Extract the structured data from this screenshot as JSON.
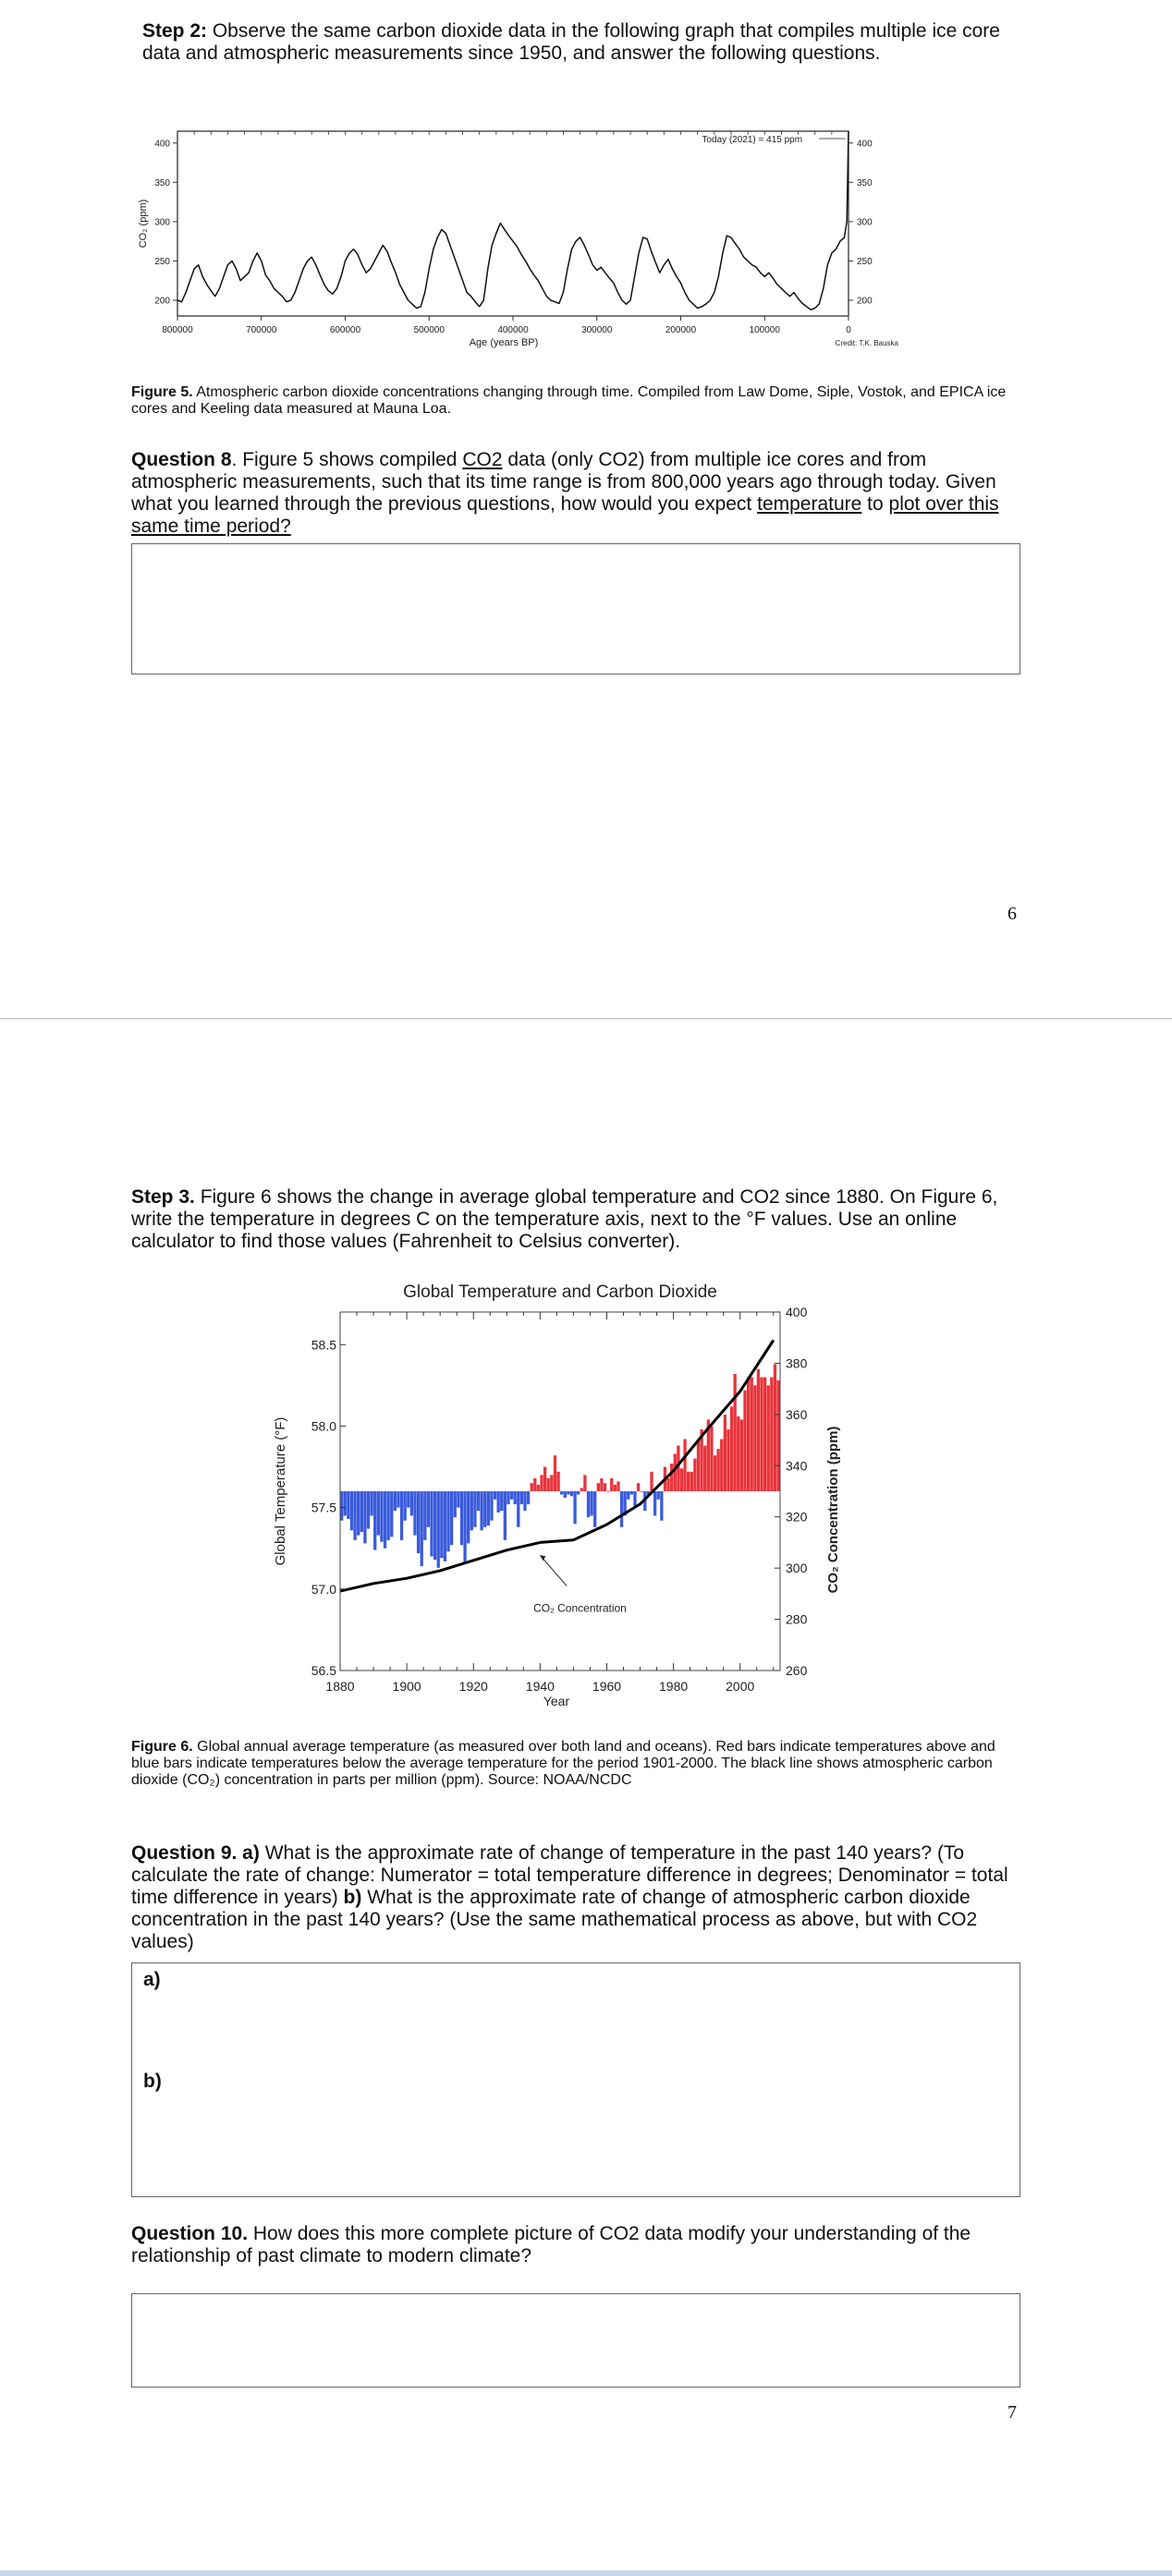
{
  "step2": {
    "label": "Step 2:",
    "text": " Observe the same carbon dioxide data in the following graph that compiles multiple ice core data and atmospheric measurements since 1950, and answer the following questions."
  },
  "figure5": {
    "caption_label": "Figure 5.",
    "caption_text": " Atmospheric carbon dioxide concentrations changing through time. Compiled from Law Dome, Siple, Vostok, and EPICA ice cores and Keeling data measured at Mauna Loa.",
    "credit": "Credit: T.K. Bauska"
  },
  "question8": {
    "label": "Question 8",
    "text_a": ". Figure 5 shows compiled ",
    "underline1": "CO2",
    "text_b": " data (only CO2) from multiple ice cores and from atmospheric measurements, such that its time range is from 800,000 years ago through today. Given what you learned through the previous questions, how would you expect ",
    "underline2": "temperature",
    "text_c": " to ",
    "underline3": "plot over this same time period?"
  },
  "page6": "6",
  "step3": {
    "label": "Step 3.",
    "text": " Figure 6 shows the change in average global temperature and CO2 since 1880. On Figure 6, write the temperature in degrees C on the temperature axis, next to the °F values. Use an online calculator to find those values (Fahrenheit to Celsius converter)."
  },
  "figure6": {
    "caption_label": "Figure 6.",
    "caption_text": " Global annual average temperature (as measured over both land and oceans). Red bars indicate temperatures above and blue bars indicate temperatures below the average temperature for the period 1901-2000. The black line shows atmospheric carbon dioxide (CO₂) concentration in parts per million (ppm). Source: NOAA/NCDC"
  },
  "question9": {
    "label": "Question 9. a)",
    "text_a": " What is the approximate rate of change of temperature in the past 140 years? (To calculate the rate of change: Numerator = total temperature difference in degrees; Denominator = total time difference in years) ",
    "label_b": "b)",
    "text_b": " What is the approximate rate of change of atmospheric carbon dioxide concentration in the past 140 years? (Use the same mathematical process as above, but with CO2 values)",
    "answer_a_label": "a)",
    "answer_b_label": "b)"
  },
  "question10": {
    "label": "Question 10.",
    "text": " How does this more complete picture of CO2 data modify your understanding of the relationship of past climate to modern climate?"
  },
  "page7": "7",
  "chart_data": [
    {
      "type": "line",
      "title": "",
      "xlabel": "Age (years BP)",
      "ylabel": "CO₂ (ppm)",
      "x_ticks": [
        "800000",
        "700000",
        "600000",
        "500000",
        "400000",
        "300000",
        "200000",
        "100000",
        "0"
      ],
      "y_ticks": [
        "400",
        "350",
        "300",
        "250",
        "200"
      ],
      "xlim": [
        800000,
        0
      ],
      "ylim": [
        180,
        415
      ],
      "annotation": "Today (2021) = 415 ppm",
      "series": [
        {
          "x": [
            800000,
            795000,
            790000,
            785000,
            780000,
            775000,
            770000,
            765000,
            760000,
            755000,
            750000,
            745000,
            740000,
            735000,
            730000,
            725000,
            720000,
            715000,
            710000,
            705000,
            700000,
            695000,
            690000,
            685000,
            680000,
            675000,
            670000,
            665000,
            660000,
            655000,
            650000,
            645000,
            640000,
            635000,
            630000,
            625000,
            620000,
            615000,
            610000,
            605000,
            600000,
            595000,
            590000,
            585000,
            580000,
            575000,
            570000,
            565000,
            560000,
            555000,
            550000,
            545000,
            540000,
            535000,
            530000,
            525000,
            520000,
            515000,
            510000,
            505000,
            500000,
            495000,
            490000,
            485000,
            480000,
            475000,
            470000,
            465000,
            460000,
            455000,
            450000,
            445000,
            440000,
            435000,
            430000,
            425000,
            420000,
            415000,
            410000,
            405000,
            400000,
            395000,
            390000,
            385000,
            380000,
            375000,
            370000,
            365000,
            360000,
            355000,
            350000,
            345000,
            340000,
            335000,
            330000,
            325000,
            320000,
            315000,
            310000,
            305000,
            300000,
            295000,
            290000,
            285000,
            280000,
            275000,
            270000,
            265000,
            260000,
            255000,
            250000,
            245000,
            240000,
            235000,
            230000,
            225000,
            220000,
            215000,
            210000,
            205000,
            200000,
            195000,
            190000,
            185000,
            180000,
            175000,
            170000,
            165000,
            160000,
            155000,
            150000,
            145000,
            140000,
            135000,
            130000,
            125000,
            120000,
            115000,
            110000,
            105000,
            100000,
            95000,
            90000,
            85000,
            80000,
            75000,
            70000,
            65000,
            60000,
            55000,
            50000,
            45000,
            40000,
            35000,
            30000,
            25000,
            20000,
            15000,
            10000,
            5000,
            2000,
            0
          ],
          "y": [
            200,
            198,
            210,
            225,
            240,
            245,
            230,
            220,
            212,
            205,
            215,
            230,
            245,
            250,
            240,
            225,
            230,
            235,
            250,
            260,
            250,
            232,
            225,
            215,
            210,
            205,
            198,
            200,
            210,
            225,
            240,
            250,
            255,
            245,
            232,
            220,
            212,
            208,
            215,
            230,
            250,
            260,
            265,
            258,
            245,
            235,
            240,
            250,
            260,
            270,
            262,
            248,
            235,
            220,
            210,
            200,
            195,
            190,
            192,
            210,
            240,
            265,
            280,
            290,
            285,
            270,
            255,
            240,
            225,
            210,
            205,
            198,
            192,
            200,
            240,
            270,
            285,
            298,
            290,
            282,
            275,
            268,
            258,
            250,
            240,
            232,
            225,
            215,
            205,
            200,
            198,
            196,
            210,
            240,
            265,
            275,
            280,
            270,
            258,
            245,
            238,
            242,
            235,
            228,
            222,
            210,
            200,
            195,
            200,
            230,
            260,
            280,
            278,
            262,
            248,
            235,
            245,
            252,
            240,
            230,
            222,
            210,
            200,
            195,
            190,
            192,
            195,
            200,
            210,
            230,
            260,
            282,
            280,
            272,
            265,
            255,
            250,
            245,
            242,
            235,
            230,
            235,
            228,
            220,
            215,
            210,
            205,
            210,
            202,
            196,
            192,
            188,
            190,
            195,
            215,
            245,
            260,
            265,
            275,
            280,
            300,
            415
          ]
        }
      ]
    },
    {
      "type": "bar",
      "title": "Global Temperature and Carbon Dioxide",
      "xlabel": "Year",
      "ylabel": "Global Temperature (°F)",
      "y2label": "CO₂ Concentration (ppm)",
      "x_ticks": [
        "1880",
        "1900",
        "1920",
        "1940",
        "1960",
        "1980",
        "2000"
      ],
      "y_ticks": [
        "58.5",
        "58.0",
        "57.5",
        "57.0",
        "56.5"
      ],
      "y2_ticks": [
        "400",
        "380",
        "360",
        "340",
        "320",
        "300",
        "280",
        "260"
      ],
      "xlim": [
        1880,
        2012
      ],
      "ylim": [
        56.5,
        58.7
      ],
      "y2lim": [
        260,
        400
      ],
      "baseline_F": 57.6,
      "annotation": "CO₂ Concentration",
      "series": [
        {
          "name": "Temperature anomaly",
          "x": [
            1880,
            1881,
            1882,
            1883,
            1884,
            1885,
            1886,
            1887,
            1888,
            1889,
            1890,
            1891,
            1892,
            1893,
            1894,
            1895,
            1896,
            1897,
            1898,
            1899,
            1900,
            1901,
            1902,
            1903,
            1904,
            1905,
            1906,
            1907,
            1908,
            1909,
            1910,
            1911,
            1912,
            1913,
            1914,
            1915,
            1916,
            1917,
            1918,
            1919,
            1920,
            1921,
            1922,
            1923,
            1924,
            1925,
            1926,
            1927,
            1928,
            1929,
            1930,
            1931,
            1932,
            1933,
            1934,
            1935,
            1936,
            1937,
            1938,
            1939,
            1940,
            1941,
            1942,
            1943,
            1944,
            1945,
            1946,
            1947,
            1948,
            1949,
            1950,
            1951,
            1952,
            1953,
            1954,
            1955,
            1956,
            1957,
            1958,
            1959,
            1960,
            1961,
            1962,
            1963,
            1964,
            1965,
            1966,
            1967,
            1968,
            1969,
            1970,
            1971,
            1972,
            1973,
            1974,
            1975,
            1976,
            1977,
            1978,
            1979,
            1980,
            1981,
            1982,
            1983,
            1984,
            1985,
            1986,
            1987,
            1988,
            1989,
            1990,
            1991,
            1992,
            1993,
            1994,
            1995,
            1996,
            1997,
            1998,
            1999,
            2000,
            2001,
            2002,
            2003,
            2004,
            2005,
            2006,
            2007,
            2008,
            2009,
            2010,
            2011
          ],
          "values_F": [
            57.42,
            57.45,
            57.43,
            57.36,
            57.3,
            57.33,
            57.35,
            57.28,
            57.37,
            57.45,
            57.24,
            57.33,
            57.29,
            57.25,
            57.3,
            57.32,
            57.48,
            57.5,
            57.3,
            57.42,
            57.5,
            57.45,
            57.33,
            57.22,
            57.14,
            57.3,
            57.38,
            57.2,
            57.18,
            57.13,
            57.19,
            57.17,
            57.23,
            57.27,
            57.44,
            57.5,
            57.27,
            57.16,
            57.28,
            57.36,
            57.38,
            57.48,
            57.36,
            57.38,
            57.39,
            57.42,
            57.55,
            57.47,
            57.48,
            57.3,
            57.52,
            57.55,
            57.52,
            57.38,
            57.52,
            57.48,
            57.52,
            57.65,
            57.68,
            57.64,
            57.7,
            57.75,
            57.68,
            57.7,
            57.82,
            57.72,
            57.58,
            57.56,
            57.58,
            57.57,
            57.4,
            57.58,
            57.62,
            57.7,
            57.44,
            57.45,
            57.38,
            57.65,
            57.68,
            57.65,
            57.6,
            57.68,
            57.64,
            57.66,
            57.38,
            57.45,
            57.55,
            57.58,
            57.5,
            57.65,
            57.6,
            57.48,
            57.58,
            57.72,
            57.45,
            57.55,
            57.42,
            57.75,
            57.68,
            57.77,
            57.83,
            57.88,
            57.74,
            57.92,
            57.72,
            57.72,
            57.8,
            57.92,
            57.98,
            57.88,
            58.04,
            58.0,
            57.82,
            57.86,
            57.92,
            58.07,
            57.98,
            58.12,
            58.32,
            58.06,
            58.04,
            58.22,
            58.3,
            58.3,
            58.25,
            58.35,
            58.3,
            58.3,
            58.25,
            58.3,
            58.38,
            58.28
          ]
        },
        {
          "name": "CO₂ Concentration",
          "x": [
            1880,
            1890,
            1900,
            1910,
            1920,
            1930,
            1940,
            1950,
            1960,
            1970,
            1980,
            1990,
            2000,
            2010
          ],
          "values_ppm": [
            291,
            294,
            296,
            299,
            303,
            307,
            310,
            311,
            317,
            325,
            338,
            354,
            369,
            389
          ]
        }
      ]
    }
  ]
}
